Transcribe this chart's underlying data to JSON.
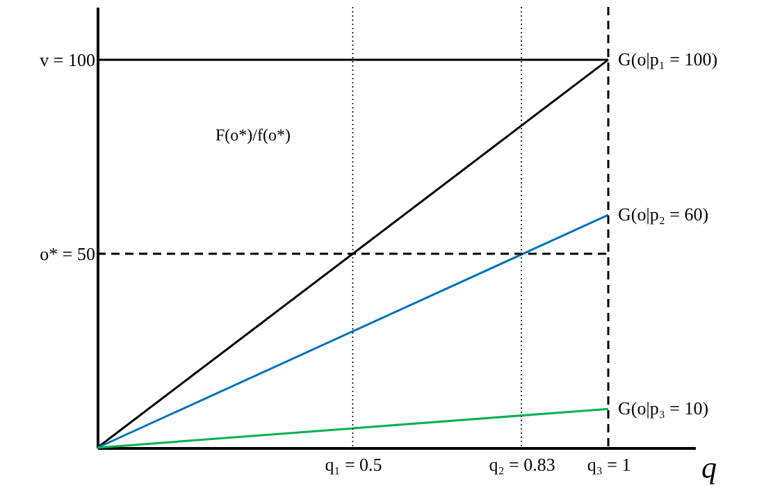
{
  "chart_data": {
    "type": "line",
    "xlabel": "q",
    "x": [
      0,
      1
    ],
    "series": [
      {
        "name": "G(o|p₁ = 100)",
        "color": "#000000",
        "values": [
          0,
          100
        ]
      },
      {
        "name": "G(o|p₂ = 60)",
        "color": "#0072bd",
        "values": [
          0,
          60
        ]
      },
      {
        "name": "G(o|p₃ = 10)",
        "color": "#00b050",
        "values": [
          0,
          10
        ]
      }
    ],
    "xlim": [
      0,
      1.17
    ],
    "ylim": [
      0,
      113.6
    ],
    "xticks": [
      {
        "value": 0.5,
        "label": "q₁ = 0.5"
      },
      {
        "value": 0.83,
        "label": "q₂ = 0.83"
      },
      {
        "value": 1,
        "label": "q₃ = 1"
      }
    ],
    "yticks": [
      {
        "value": 50,
        "label": "o* = 50"
      },
      {
        "value": 100,
        "label": "v = 100"
      }
    ],
    "ref_lines": [
      {
        "axis": "y",
        "value": 100,
        "color": "#000000",
        "line_style": "solid"
      },
      {
        "axis": "y",
        "value": 50,
        "color": "#000000",
        "line_style": "dashed"
      },
      {
        "axis": "x",
        "value": 0.5,
        "color": "#000000",
        "line_style": "dotted"
      },
      {
        "axis": "x",
        "value": 0.83,
        "color": "#000000",
        "line_style": "dotted"
      },
      {
        "axis": "x",
        "value": 1,
        "color": "#000000",
        "line_style": "dashed"
      }
    ],
    "annotations": [
      "F(o*)/f(o*)"
    ],
    "grid": false,
    "legend": false,
    "marker": "none",
    "line_style": "solid"
  }
}
